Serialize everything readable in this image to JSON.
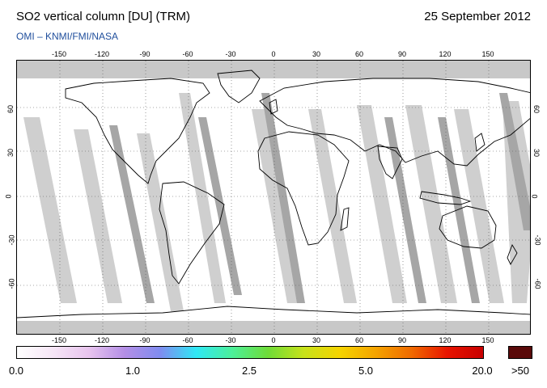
{
  "header": {
    "title": "SO2 vertical column [DU] (TRM)",
    "date": "25 September 2012",
    "subtitle": "OMI  –  KNMI/FMI/NASA"
  },
  "map": {
    "projection": "equirectangular",
    "lon_ticks": [
      "-150",
      "-120",
      "-90",
      "-60",
      "-30",
      "0",
      "30",
      "60",
      "90",
      "120",
      "150"
    ],
    "lat_ticks": [
      "60",
      "30",
      "0",
      "-30",
      "-60"
    ],
    "land_outline_color": "#000000",
    "no_data_color": "#c8c8c8",
    "overlap_swath_color": "#a0a0a0",
    "grid_style": "dotted"
  },
  "colorbar": {
    "labels": [
      "0.0",
      "1.0",
      "2.5",
      "5.0",
      "20.0",
      ">50"
    ],
    "stops": [
      "#ffffff",
      "#f6e6f6",
      "#e8c4ee",
      "#b48ee6",
      "#7f8cf0",
      "#2fe8f5",
      "#4cf09a",
      "#6edc38",
      "#c7e21a",
      "#f5d400",
      "#f5a400",
      "#f06a00",
      "#e81400",
      "#c80000"
    ],
    "overflow_color": "#5a0a0a"
  }
}
